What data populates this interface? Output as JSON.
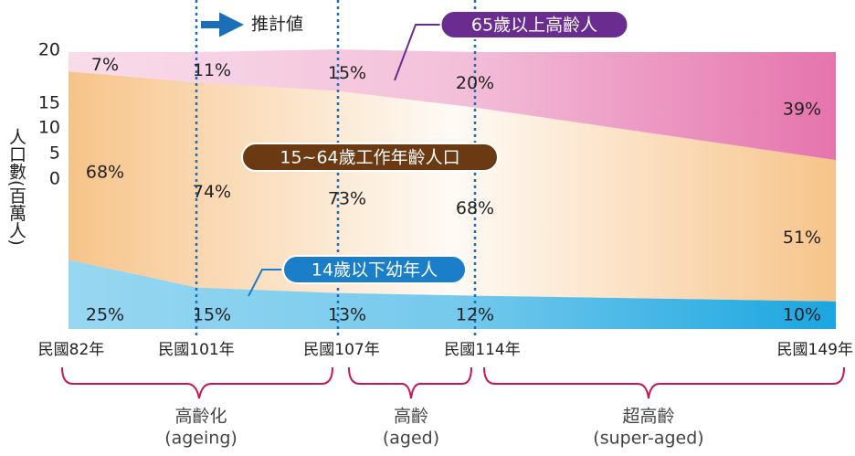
{
  "chart_data": {
    "type": "stacked-area",
    "y_axis_label": "人口數(百萬人)",
    "yticks": [
      20,
      15,
      10,
      5,
      0
    ],
    "projection_label": "推計値",
    "categories": [
      "民國82年",
      "民國101年",
      "民國107年",
      "民國114年",
      "民國149年"
    ],
    "series": [
      {
        "name": "14歲以下幼年人",
        "color": "#1aa6e0",
        "label_color": "#1a7ec8",
        "values": [
          25,
          15,
          13,
          12,
          10
        ],
        "value_labels": [
          "25%",
          "15%",
          "13%",
          "12%",
          "10%"
        ]
      },
      {
        "name": "15~64歲工作年齡人口",
        "color": "#f7c48a",
        "label_color": "#6b3a12",
        "values": [
          68,
          74,
          73,
          68,
          51
        ],
        "value_labels": [
          "68%",
          "74%",
          "73%",
          "68%",
          "51%"
        ]
      },
      {
        "name": "65歲以上高齡人",
        "color": "#e574ad",
        "label_color": "#6a2c8e",
        "values": [
          7,
          11,
          15,
          20,
          39
        ],
        "value_labels": [
          "7%",
          "11%",
          "15%",
          "20%",
          "39%"
        ]
      }
    ],
    "annotations": [
      {
        "lines": [
          "高齡化",
          "(ageing)"
        ]
      },
      {
        "lines": [
          "高齡",
          "(aged)"
        ]
      },
      {
        "lines": [
          "超高齡",
          "(super-aged)"
        ]
      }
    ]
  }
}
